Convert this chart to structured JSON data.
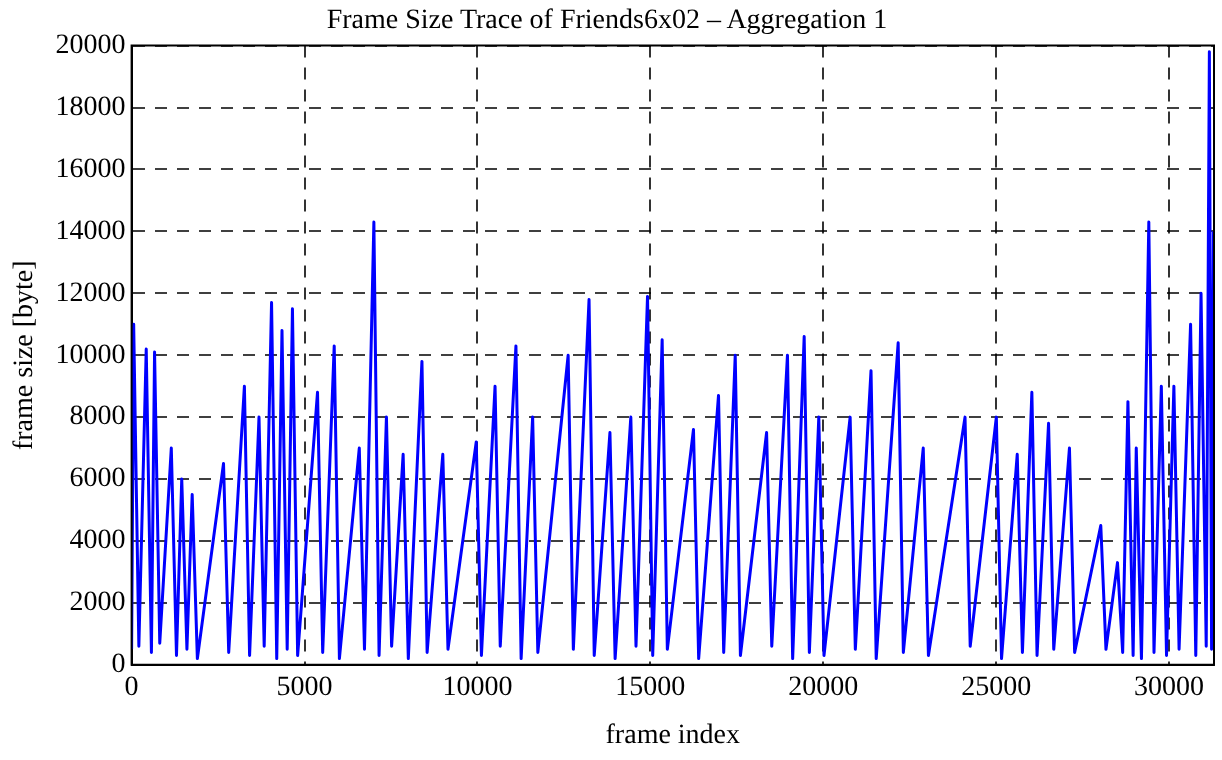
{
  "chart_data": {
    "type": "line",
    "title": "Frame Size Trace of Friends6x02 – Aggregation 1",
    "xlabel": "frame index",
    "ylabel": "frame size [byte]",
    "x": [
      0,
      60,
      210,
      423,
      573,
      664,
      814,
      1148,
      1298,
      1450,
      1600,
      1752,
      1902,
      2658,
      2808,
      3262,
      3412,
      3684,
      3834,
      4047,
      4197,
      4349,
      4499,
      4651,
      4801,
      5376,
      5526,
      5859,
      6009,
      6584,
      6734,
      7006,
      7156,
      7369,
      7519,
      7852,
      8002,
      8396,
      8546,
      8999,
      9149,
      9966,
      10116,
      10510,
      10660,
      11114,
      11264,
      11597,
      11747,
      12624,
      12774,
      13228,
      13378,
      13832,
      13982,
      14436,
      14586,
      14919,
      15069,
      15342,
      15492,
      16248,
      16398,
      16972,
      17122,
      17455,
      17605,
      18362,
      18512,
      18966,
      19116,
      19449,
      19599,
      19872,
      20022,
      20778,
      20928,
      21382,
      21532,
      22167,
      22317,
      22892,
      23042,
      24100,
      24250,
      25006,
      25156,
      25610,
      25760,
      26033,
      26183,
      26516,
      26666,
      27120,
      27270,
      28026,
      28176,
      28509,
      28659,
      28811,
      28961,
      29052,
      29202,
      29415,
      29565,
      29777,
      29927,
      30140,
      30290,
      30623,
      30773,
      30925,
      31075,
      31166,
      31230,
      31287
    ],
    "series": [
      {
        "color": "#0000ff",
        "values": [
          500,
          11000,
          600,
          10200,
          400,
          10100,
          700,
          7000,
          300,
          6000,
          500,
          5500,
          200,
          6500,
          400,
          9000,
          300,
          8000,
          600,
          11700,
          200,
          10800,
          500,
          11500,
          300,
          8800,
          400,
          10300,
          200,
          7000,
          500,
          14300,
          300,
          8000,
          600,
          6800,
          200,
          9800,
          400,
          6800,
          500,
          7200,
          300,
          9000,
          600,
          10300,
          200,
          8000,
          400,
          10000,
          500,
          11800,
          300,
          7500,
          200,
          8000,
          600,
          11900,
          300,
          10500,
          500,
          7600,
          200,
          8700,
          400,
          10000,
          300,
          7500,
          600,
          10000,
          200,
          10600,
          400,
          8000,
          300,
          8000,
          500,
          9500,
          200,
          10400,
          400,
          7000,
          300,
          8000,
          600,
          8000,
          200,
          6800,
          400,
          8800,
          300,
          7800,
          500,
          7000,
          400,
          4500,
          500,
          3300,
          400,
          8500,
          300,
          7000,
          200,
          14300,
          400,
          9000,
          300,
          9000,
          500,
          11000,
          300,
          12000,
          600,
          19800,
          500,
          14000
        ]
      }
    ],
    "xlim": [
      0,
      31300
    ],
    "xticks": [
      0,
      5000,
      10000,
      15000,
      20000,
      25000,
      30000
    ],
    "ylim": [
      0,
      20000
    ],
    "yticks": [
      0,
      2000,
      4000,
      6000,
      8000,
      10000,
      12000,
      14000,
      16000,
      18000,
      20000
    ],
    "grid": true,
    "legend": false,
    "marker": "none",
    "line_style": "solid"
  }
}
